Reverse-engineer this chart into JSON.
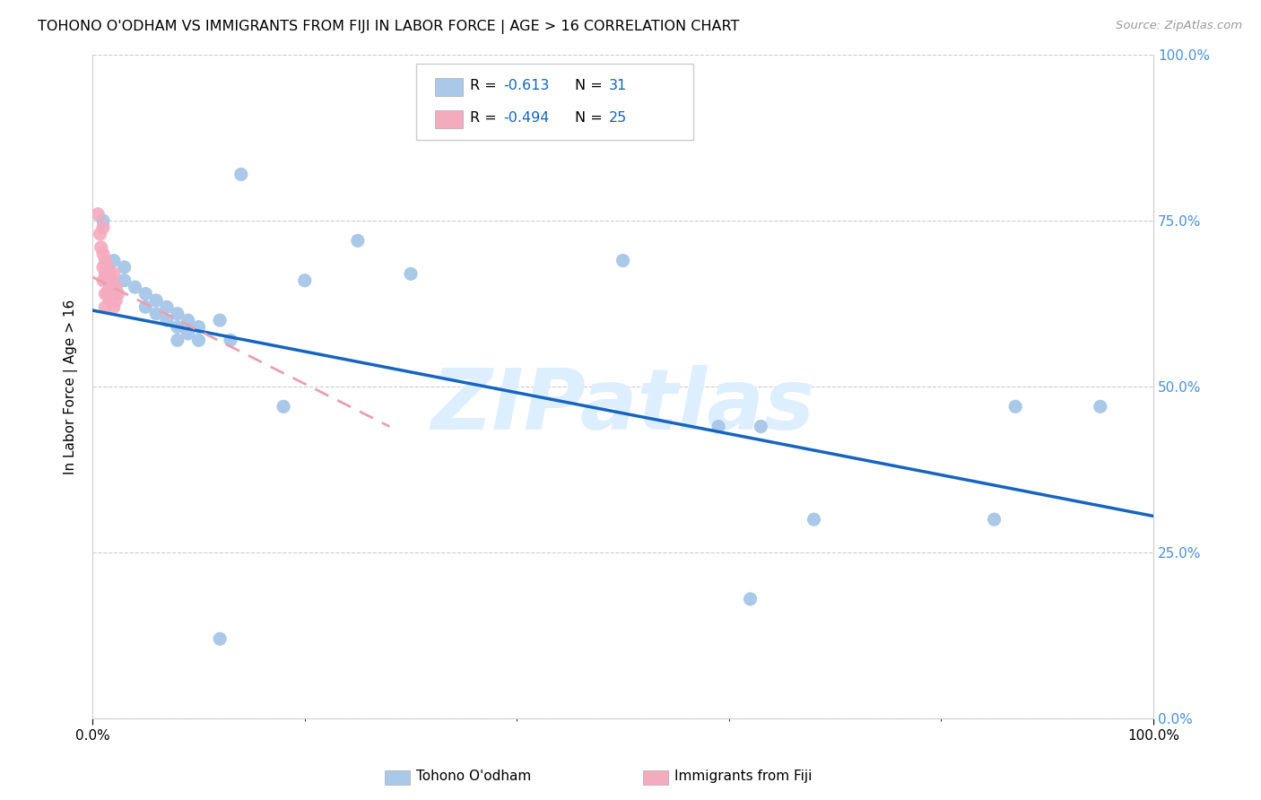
{
  "title": "TOHONO O'ODHAM VS IMMIGRANTS FROM FIJI IN LABOR FORCE | AGE > 16 CORRELATION CHART",
  "source": "Source: ZipAtlas.com",
  "ylabel": "In Labor Force | Age > 16",
  "xlim": [
    0,
    1
  ],
  "ylim": [
    0,
    1
  ],
  "x_tick_labels": [
    "0.0%",
    "100.0%"
  ],
  "y_tick_labels": [
    "0.0%",
    "25.0%",
    "50.0%",
    "75.0%",
    "100.0%"
  ],
  "y_tick_positions": [
    0.0,
    0.25,
    0.5,
    0.75,
    1.0
  ],
  "watermark": "ZIPatlas",
  "blue_scatter": [
    [
      0.01,
      0.75
    ],
    [
      0.02,
      0.69
    ],
    [
      0.03,
      0.68
    ],
    [
      0.03,
      0.66
    ],
    [
      0.04,
      0.65
    ],
    [
      0.05,
      0.64
    ],
    [
      0.05,
      0.62
    ],
    [
      0.06,
      0.63
    ],
    [
      0.06,
      0.61
    ],
    [
      0.07,
      0.62
    ],
    [
      0.07,
      0.6
    ],
    [
      0.08,
      0.61
    ],
    [
      0.08,
      0.59
    ],
    [
      0.08,
      0.57
    ],
    [
      0.09,
      0.6
    ],
    [
      0.09,
      0.58
    ],
    [
      0.1,
      0.59
    ],
    [
      0.1,
      0.57
    ],
    [
      0.12,
      0.6
    ],
    [
      0.13,
      0.57
    ],
    [
      0.14,
      0.82
    ],
    [
      0.12,
      0.12
    ],
    [
      0.18,
      0.47
    ],
    [
      0.2,
      0.66
    ],
    [
      0.25,
      0.72
    ],
    [
      0.3,
      0.67
    ],
    [
      0.5,
      0.69
    ],
    [
      0.59,
      0.44
    ],
    [
      0.63,
      0.44
    ],
    [
      0.62,
      0.18
    ],
    [
      0.68,
      0.3
    ],
    [
      0.85,
      0.3
    ],
    [
      0.87,
      0.47
    ],
    [
      0.95,
      0.47
    ]
  ],
  "pink_scatter": [
    [
      0.005,
      0.76
    ],
    [
      0.007,
      0.73
    ],
    [
      0.008,
      0.71
    ],
    [
      0.01,
      0.74
    ],
    [
      0.01,
      0.7
    ],
    [
      0.01,
      0.68
    ],
    [
      0.01,
      0.66
    ],
    [
      0.012,
      0.69
    ],
    [
      0.012,
      0.67
    ],
    [
      0.012,
      0.64
    ],
    [
      0.012,
      0.62
    ],
    [
      0.014,
      0.68
    ],
    [
      0.014,
      0.66
    ],
    [
      0.014,
      0.64
    ],
    [
      0.016,
      0.67
    ],
    [
      0.016,
      0.65
    ],
    [
      0.016,
      0.63
    ],
    [
      0.018,
      0.66
    ],
    [
      0.018,
      0.64
    ],
    [
      0.02,
      0.67
    ],
    [
      0.02,
      0.65
    ],
    [
      0.02,
      0.62
    ],
    [
      0.022,
      0.65
    ],
    [
      0.022,
      0.63
    ],
    [
      0.024,
      0.64
    ]
  ],
  "blue_line": [
    [
      0.0,
      0.615
    ],
    [
      1.0,
      0.305
    ]
  ],
  "pink_line": [
    [
      0.0,
      0.665
    ],
    [
      0.28,
      0.44
    ]
  ],
  "blue_color": "#aac8e8",
  "pink_color": "#f4aabf",
  "blue_line_color": "#1565c0",
  "pink_line_color": "#e8a0b0",
  "scatter_size": 120,
  "title_fontsize": 11.5,
  "axis_label_fontsize": 11,
  "tick_fontsize": 11,
  "right_tick_color": "#4a90d9",
  "grid_color": "#cccccc"
}
